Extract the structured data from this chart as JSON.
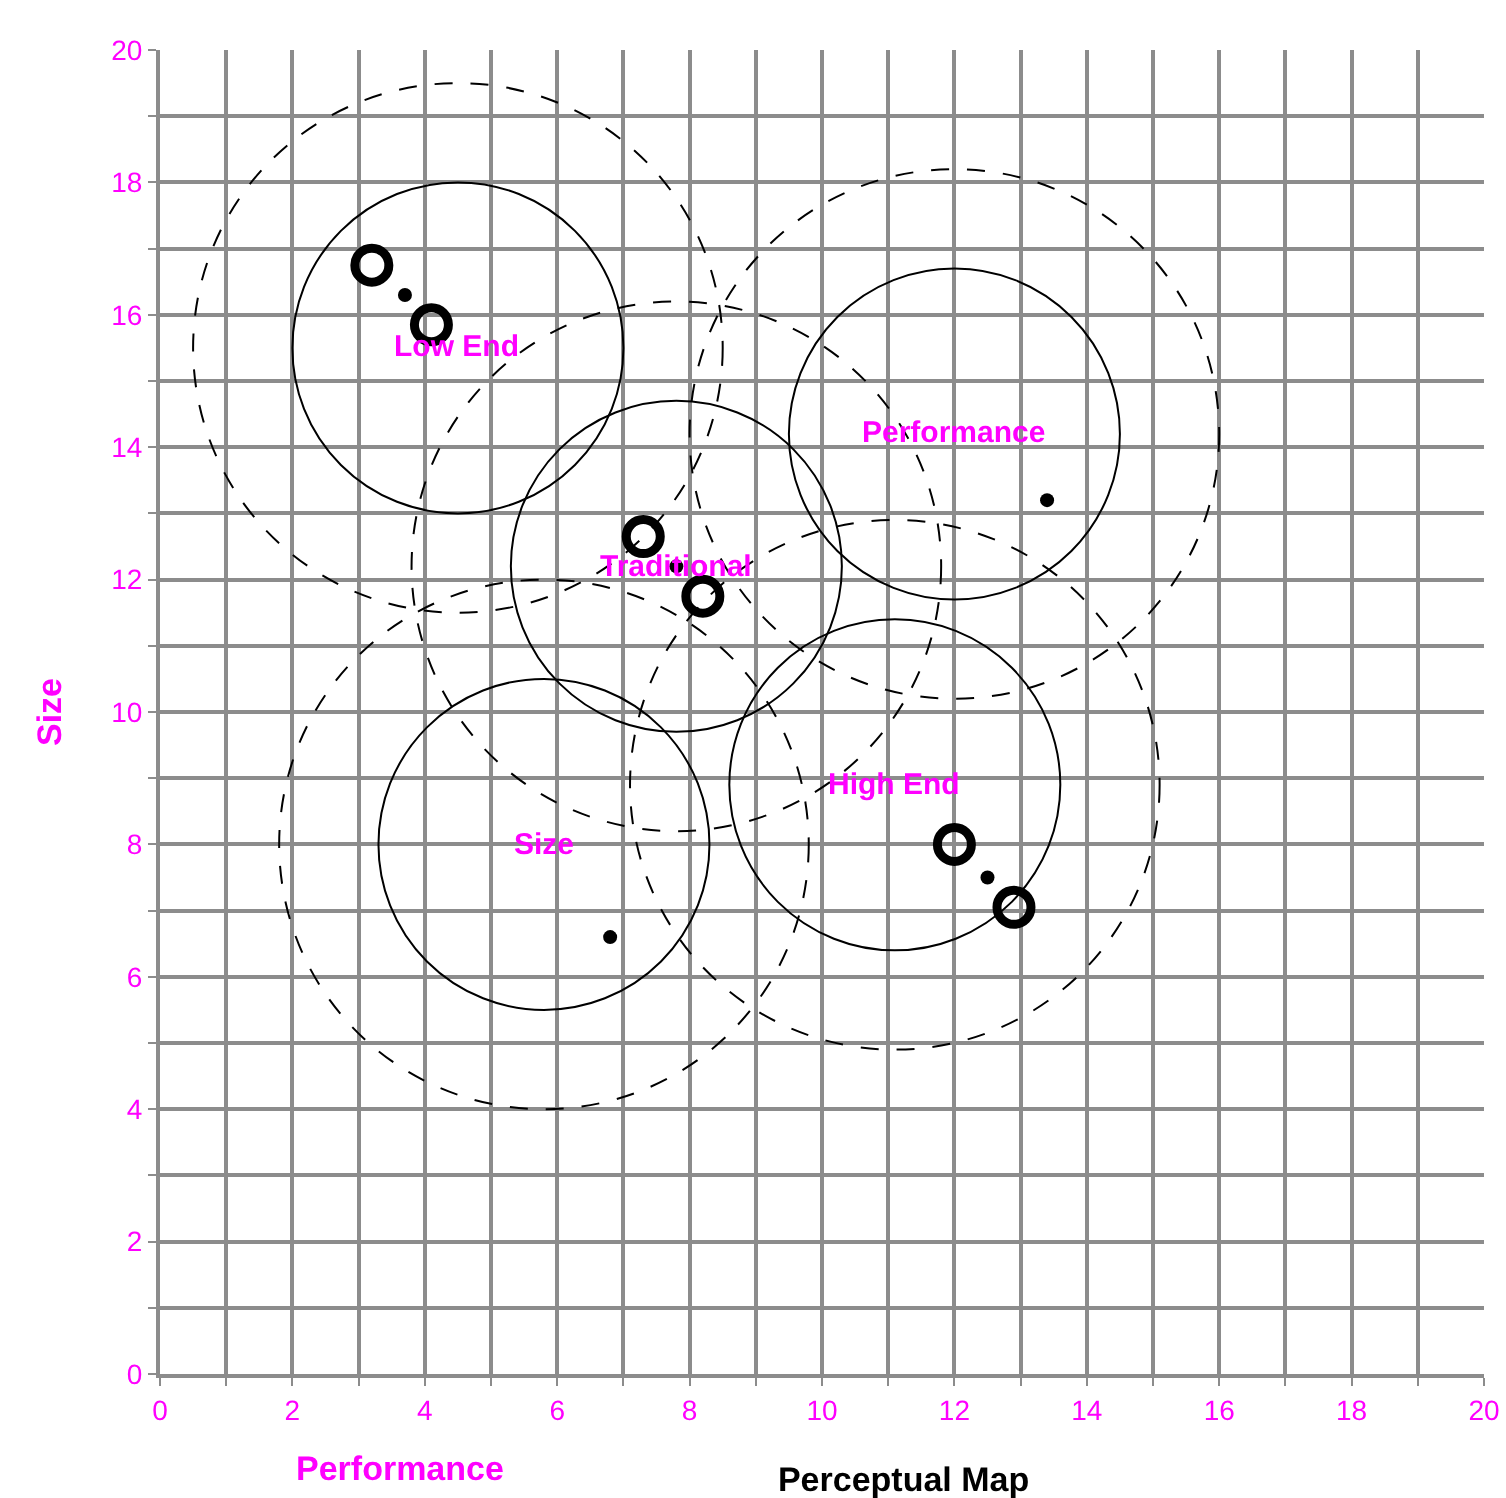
{
  "chart_data": {
    "type": "scatter",
    "title": "Perceptual Map",
    "xlabel": "Performance",
    "ylabel": "Size",
    "xlim": [
      0,
      20
    ],
    "ylim": [
      0,
      20
    ],
    "xticks": [
      0,
      {
        "value": 1,
        "label": null
      },
      2,
      {
        "value": 3,
        "label": null
      },
      4,
      {
        "value": 5,
        "label": null
      },
      6,
      {
        "value": 7,
        "label": null
      },
      8,
      {
        "value": 9,
        "label": null
      },
      10,
      {
        "value": 11,
        "label": null
      },
      12,
      {
        "value": 13,
        "label": null
      },
      14,
      {
        "value": 15,
        "label": null
      },
      16,
      {
        "value": 17,
        "label": null
      },
      18,
      {
        "value": 19,
        "label": null
      },
      20
    ],
    "yticks": [
      0,
      {
        "value": 1,
        "label": null
      },
      2,
      {
        "value": 3,
        "label": null
      },
      4,
      {
        "value": 5,
        "label": null
      },
      6,
      {
        "value": 7,
        "label": null
      },
      8,
      {
        "value": 9,
        "label": null
      },
      10,
      {
        "value": 11,
        "label": null
      },
      12,
      {
        "value": 13,
        "label": null
      },
      14,
      {
        "value": 15,
        "label": null
      },
      16,
      {
        "value": 17,
        "label": null
      },
      18,
      {
        "value": 19,
        "label": null
      },
      20
    ],
    "grid": true,
    "series": [
      {
        "marker": "circle",
        "color": "#000000",
        "x": [
          3.7,
          7.8,
          13.4,
          12.5,
          6.8
        ],
        "values": [
          16.3,
          12.2,
          13.2,
          7.5,
          6.6
        ]
      },
      {
        "marker": "circle-open",
        "color": "#000000",
        "x": [
          3.2,
          4.1,
          7.3,
          8.2,
          12,
          12.9
        ],
        "values": [
          16.75,
          15.85,
          12.65,
          11.75,
          8,
          7.05
        ]
      }
    ],
    "annotations": [
      "Low End",
      "Traditional",
      "Performance",
      "High End",
      "Size"
    ]
  }
}
